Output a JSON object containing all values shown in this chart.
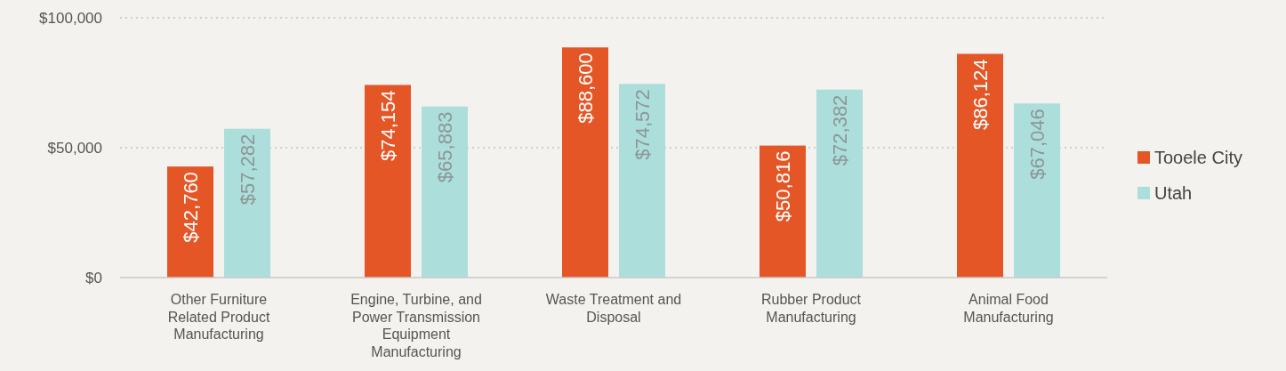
{
  "chart_data": {
    "type": "bar",
    "categories": [
      "Other Furniture Related Product Manufacturing",
      "Engine, Turbine, and Power Transmission Equipment Manufacturing",
      "Waste Treatment and Disposal",
      "Rubber Product Manufacturing",
      "Animal Food Manufacturing"
    ],
    "series": [
      {
        "name": "Tooele City",
        "color": "#e55627",
        "values": [
          42760,
          74154,
          88600,
          50816,
          86124
        ],
        "value_labels": [
          "$42,760",
          "$74,154",
          "$88,600",
          "$50,816",
          "$86,124"
        ]
      },
      {
        "name": "Utah",
        "color": "#acdfdb",
        "values": [
          57282,
          65883,
          74572,
          72382,
          67046
        ],
        "value_labels": [
          "$57,282",
          "$65,883",
          "$74,572",
          "$72,382",
          "$67,046"
        ]
      }
    ],
    "ylim": [
      0,
      100000
    ],
    "yticks": [
      {
        "value": 0,
        "label": "$0"
      },
      {
        "value": 50000,
        "label": "$50,000"
      },
      {
        "value": 100000,
        "label": "$100,000"
      }
    ],
    "grid": "y",
    "legend": "right"
  }
}
